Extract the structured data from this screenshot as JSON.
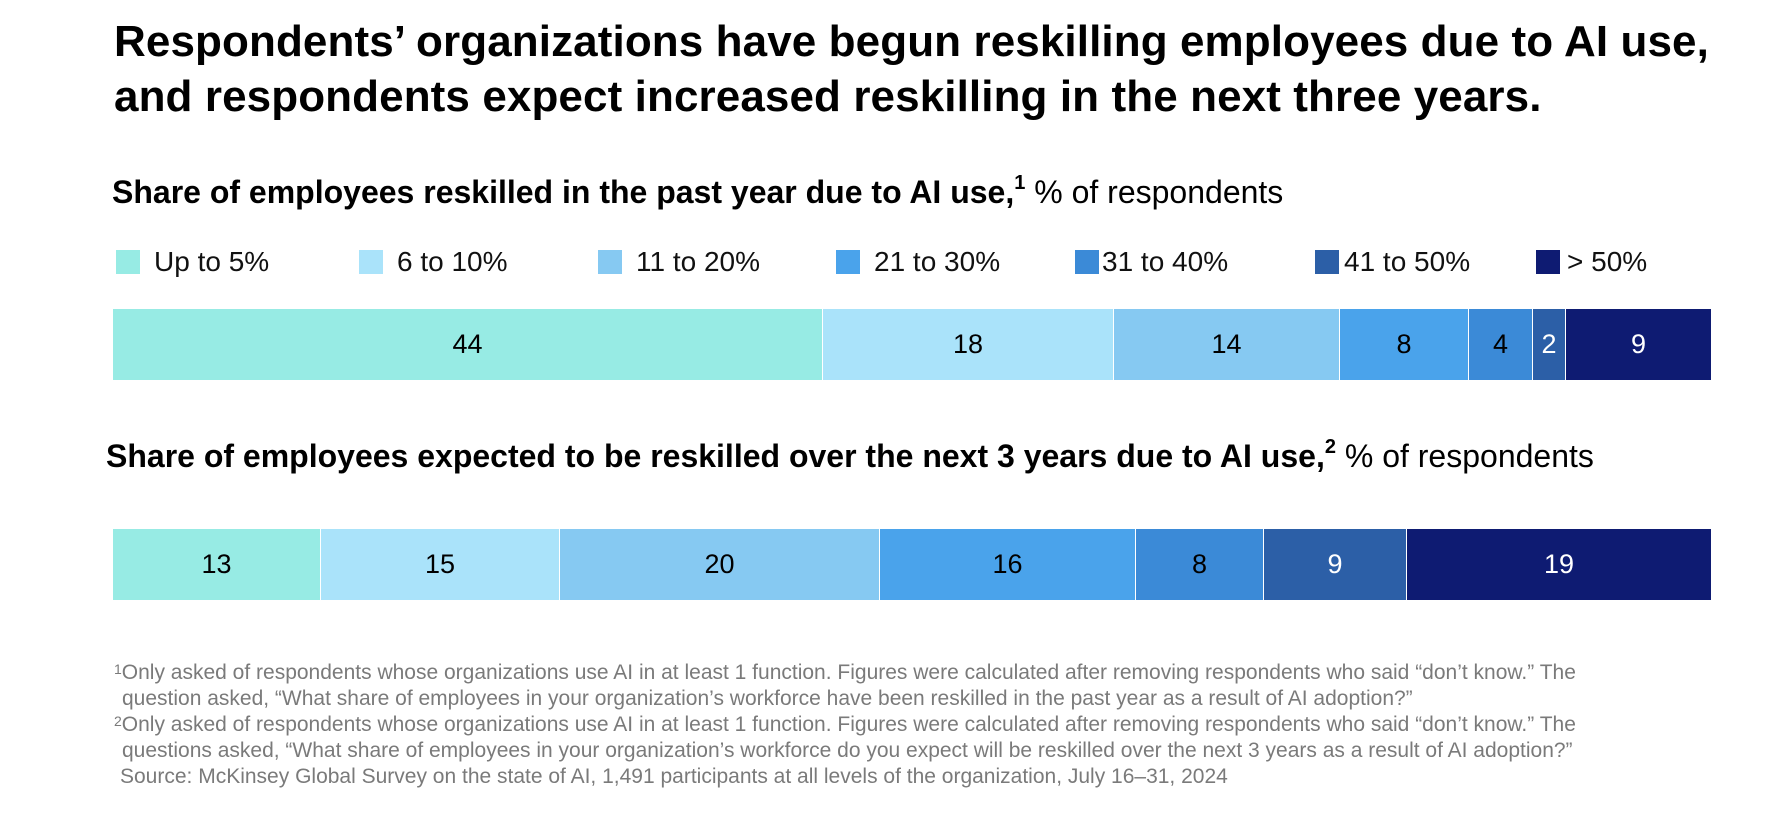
{
  "title": {
    "line1": "Respondents’ organizations have begun reskilling employees due to AI use,",
    "line2": "and respondents expect increased reskilling in the next three years."
  },
  "chart_data": [
    {
      "type": "bar",
      "orientation": "horizontal-stacked-100",
      "title": "Share of employees reskilled in the past year due to AI use,",
      "footnote_marker": "1",
      "unit": "% of respondents",
      "categories": [
        "Up to 5%",
        "6 to 10%",
        "11 to 20%",
        "21 to 30%",
        "31 to 40%",
        "41 to 50%",
        "> 50%"
      ],
      "values": [
        44,
        18,
        14,
        8,
        4,
        2,
        9
      ]
    },
    {
      "type": "bar",
      "orientation": "horizontal-stacked-100",
      "title": "Share of employees expected to be reskilled over the next 3 years due to AI use,",
      "footnote_marker": "2",
      "unit": "% of respondents",
      "categories": [
        "Up to 5%",
        "6 to 10%",
        "11 to 20%",
        "21 to 30%",
        "31 to 40%",
        "41 to 50%",
        "> 50%"
      ],
      "values": [
        13,
        15,
        20,
        16,
        8,
        9,
        19
      ]
    }
  ],
  "legend": [
    {
      "label": "Up to 5%",
      "color": "#97ebe4"
    },
    {
      "label": "6 to 10%",
      "color": "#aae3fa"
    },
    {
      "label": "11 to 20%",
      "color": "#86c9f2"
    },
    {
      "label": "21 to 30%",
      "color": "#4aa3eb"
    },
    {
      "label": "31 to 40%",
      "color": "#3b8ad7"
    },
    {
      "label": "41 to 50%",
      "color": "#2c5fa7"
    },
    {
      "label": "> 50%",
      "color": "#0e1b72"
    }
  ],
  "segment_text_colors": [
    "#000000",
    "#000000",
    "#000000",
    "#000000",
    "#000000",
    "#ffffff",
    "#ffffff"
  ],
  "footnotes": {
    "fn1_marker": "1",
    "fn1_line1": "Only asked of respondents whose organizations use AI in at least 1 function. Figures were calculated after removing respondents who said “don’t know.” The",
    "fn1_line2": "question asked, “What share of employees in your organization’s workforce have been reskilled in the past year as a result of AI adoption?”",
    "fn2_marker": "2",
    "fn2_line1": "Only asked of respondents whose organizations use AI in at least 1 function. Figures were calculated after removing respondents who said “don’t know.” The",
    "fn2_line2": "questions asked, “What share of employees in your organization’s workforce do you expect will be reskilled over the next 3 years as a result of AI adoption?”",
    "source": "Source: McKinsey Global Survey on the state of AI, 1,491 participants at all levels of the organization, July 16–31, 2024"
  }
}
